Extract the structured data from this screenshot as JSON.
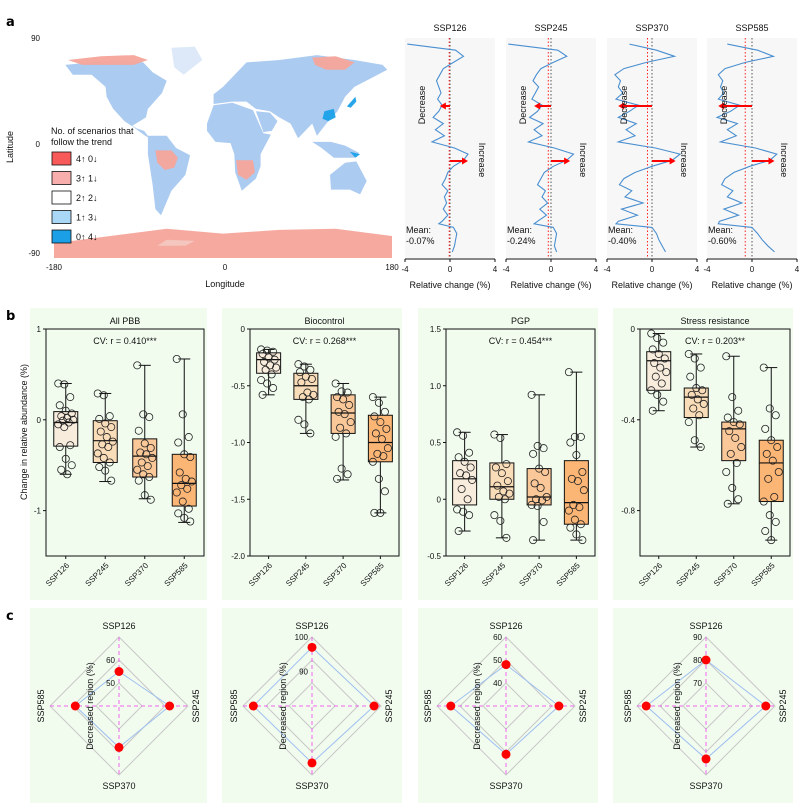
{
  "figure": {
    "panel_letters": [
      "a",
      "b",
      "c"
    ]
  },
  "chart_data": [
    {
      "id": "map",
      "type": "heatmap",
      "title": "",
      "xlabel": "Longitude",
      "ylabel": "Latitude",
      "xticks": [
        "-180",
        "0",
        "180"
      ],
      "yticks": [
        "90",
        "0",
        "-90"
      ],
      "xlim": [
        -180,
        180
      ],
      "ylim": [
        -90,
        90
      ],
      "legend": {
        "title_line1": "No. of scenarios that",
        "title_line2": "follow the trend",
        "placement": "left",
        "items": [
          {
            "label": "4↑ 0↓",
            "color": "#f85a5a"
          },
          {
            "label": "3↑ 1↓",
            "color": "#f9aeae"
          },
          {
            "label": "2↑ 2↓",
            "color": "#ffffff"
          },
          {
            "label": "1↑ 3↓",
            "color": "#a8d8f5"
          },
          {
            "label": "0↑ 4↓",
            "color": "#1ba0e8"
          }
        ]
      }
    },
    {
      "id": "latitude-profiles",
      "type": "line",
      "xlabel": "Relative change (%)",
      "xticks": [
        "-4",
        "0",
        "4"
      ],
      "xlim": [
        -4,
        4
      ],
      "ylim": [
        -90,
        90
      ],
      "annotations": {
        "decrease": "Decrease",
        "increase": "Increase",
        "mean_prefix": "Mean:"
      },
      "series": [
        {
          "name": "SSP126",
          "mean": "-0.07%",
          "mean_value": -0.07,
          "decrease_arrow_to": -0.9,
          "increase_arrow_to": 1.6,
          "profile_lat": [
            85,
            80,
            75,
            70,
            65,
            60,
            55,
            50,
            45,
            40,
            35,
            30,
            25,
            20,
            15,
            10,
            5,
            0,
            -5,
            -10,
            -15,
            -20,
            -25,
            -30,
            -35,
            -40,
            -45,
            -50,
            -55,
            -60,
            -62,
            -65,
            -70,
            -75,
            -80,
            -85
          ],
          "profile_x": [
            -3.8,
            0.5,
            1.2,
            0.3,
            -0.6,
            -0.9,
            -1.2,
            -1.0,
            -0.8,
            -1.1,
            -0.7,
            -1.0,
            -1.5,
            -0.6,
            -1.3,
            -0.5,
            -1.6,
            0.4,
            1.6,
            1.2,
            0.3,
            -0.2,
            -0.4,
            -0.7,
            -0.2,
            -0.5,
            -0.3,
            -0.6,
            -0.2,
            -0.7,
            -1.0,
            0.3,
            0.6,
            0.5,
            0.4,
            0.2
          ]
        },
        {
          "name": "SSP245",
          "mean": "-0.24%",
          "mean_value": -0.24,
          "decrease_arrow_to": -1.5,
          "increase_arrow_to": 1.7,
          "profile_lat": [
            85,
            80,
            75,
            70,
            65,
            60,
            55,
            50,
            45,
            40,
            35,
            30,
            25,
            20,
            15,
            10,
            5,
            0,
            -5,
            -10,
            -15,
            -20,
            -25,
            -30,
            -35,
            -40,
            -45,
            -50,
            -55,
            -60,
            -62,
            -65,
            -70,
            -75,
            -80,
            -85
          ],
          "profile_x": [
            -3.8,
            0.6,
            1.4,
            0.2,
            -0.9,
            -1.3,
            -1.6,
            -1.1,
            -1.4,
            -1.7,
            -0.8,
            -1.2,
            -1.9,
            -0.7,
            -1.5,
            -0.8,
            -2.0,
            0.3,
            2.0,
            1.4,
            0.2,
            -0.6,
            -0.9,
            -1.2,
            -0.5,
            -0.8,
            -0.3,
            -1.0,
            -0.4,
            -1.2,
            -1.5,
            0.2,
            0.5,
            0.4,
            0.3,
            0.5
          ]
        },
        {
          "name": "SSP370",
          "mean": "-0.40%",
          "mean_value": -0.4,
          "decrease_arrow_to": -3.0,
          "increase_arrow_to": 2.1,
          "profile_lat": [
            85,
            80,
            75,
            70,
            65,
            60,
            55,
            50,
            45,
            40,
            35,
            30,
            25,
            20,
            15,
            10,
            5,
            0,
            -5,
            -10,
            -15,
            -20,
            -25,
            -30,
            -35,
            -40,
            -45,
            -50,
            -55,
            -60,
            -62,
            -65,
            -70,
            -75,
            -80,
            -85
          ],
          "profile_x": [
            -2.0,
            0.4,
            2.0,
            -0.5,
            -2.5,
            -3.3,
            -2.8,
            -3.0,
            -2.6,
            -3.2,
            -1.2,
            -2.0,
            -3.0,
            -1.4,
            -2.3,
            -1.5,
            -3.0,
            0.3,
            2.5,
            1.8,
            0.0,
            -1.5,
            -2.5,
            -2.9,
            -1.8,
            -2.4,
            -0.8,
            -2.7,
            -1.3,
            -3.0,
            -3.2,
            0.0,
            0.4,
            0.6,
            0.9,
            1.2
          ]
        },
        {
          "name": "SSP585",
          "mean": "-0.60%",
          "mean_value": -0.6,
          "decrease_arrow_to": -3.0,
          "increase_arrow_to": 2.0,
          "profile_lat": [
            85,
            80,
            75,
            70,
            65,
            60,
            55,
            50,
            45,
            40,
            35,
            30,
            25,
            20,
            15,
            10,
            5,
            0,
            -5,
            -10,
            -15,
            -20,
            -25,
            -30,
            -35,
            -40,
            -45,
            -50,
            -55,
            -60,
            -62,
            -65,
            -70,
            -75,
            -80,
            -85
          ],
          "profile_x": [
            -2.2,
            0.5,
            1.9,
            -0.6,
            -2.4,
            -3.0,
            -2.6,
            -2.8,
            -2.5,
            -3.0,
            -1.1,
            -1.9,
            -3.1,
            -1.3,
            -2.2,
            -1.4,
            -2.8,
            0.3,
            2.2,
            1.6,
            -0.2,
            -1.6,
            -2.4,
            -2.7,
            -1.7,
            -2.2,
            -0.9,
            -2.5,
            -1.2,
            -2.9,
            -3.0,
            0.0,
            0.5,
            0.9,
            1.4,
            2.0
          ]
        }
      ]
    },
    {
      "id": "boxplots",
      "type": "bar",
      "subtype": "boxplot",
      "ylabel": "Change in relative abundance (%)",
      "categories": [
        "SSP126",
        "SSP245",
        "SSP370",
        "SSP585"
      ],
      "box_colors": [
        "#f8ecdc",
        "#f9dcb8",
        "#fac898",
        "#fbb575"
      ],
      "panels": [
        {
          "title": "All PBB",
          "annotation": "CV: r = 0.410***",
          "ylim": [
            -1.5,
            1
          ],
          "yticks": [
            1,
            0,
            -1
          ],
          "ytick_labels": [
            "1",
            "0",
            "-1"
          ],
          "boxes": [
            {
              "whislo": -0.6,
              "q1": -0.29,
              "med": -0.03,
              "q3": 0.09,
              "whishi": 0.4,
              "points": [
                0.4,
                0.39,
                0.25,
                0.16,
                0.1,
                0.07,
                0.04,
                0.02,
                0.0,
                -0.01,
                -0.03,
                -0.05,
                -0.08,
                -0.28,
                -0.3,
                -0.43,
                -0.5,
                -0.55,
                -0.6
              ]
            },
            {
              "whislo": -0.68,
              "q1": -0.47,
              "med": -0.23,
              "q3": -0.01,
              "whishi": 0.29,
              "points": [
                0.29,
                0.27,
                0.04,
                0.01,
                -0.04,
                -0.08,
                -0.13,
                -0.19,
                -0.24,
                -0.27,
                -0.3,
                -0.37,
                -0.42,
                -0.47,
                -0.52,
                -0.56,
                -0.67
              ]
            },
            {
              "whislo": -0.87,
              "q1": -0.63,
              "med": -0.4,
              "q3": -0.21,
              "whishi": 0.6,
              "points": [
                0.6,
                0.06,
                0.03,
                -0.12,
                -0.26,
                -0.31,
                -0.36,
                -0.38,
                -0.42,
                -0.47,
                -0.51,
                -0.55,
                -0.6,
                -0.63,
                -0.67,
                -0.83,
                -0.88
              ]
            },
            {
              "whislo": -1.13,
              "q1": -0.95,
              "med": -0.7,
              "q3": -0.38,
              "whishi": 0.67,
              "points": [
                0.67,
                0.06,
                -0.19,
                -0.25,
                -0.38,
                -0.41,
                -0.58,
                -0.65,
                -0.68,
                -0.72,
                -0.76,
                -0.8,
                -0.9,
                -0.98,
                -1.03,
                -1.08,
                -1.12
              ]
            }
          ]
        },
        {
          "title": "Biocontrol",
          "annotation": "CV: r = 0.268***",
          "ylim": [
            -2.0,
            0
          ],
          "yticks": [
            0,
            -0.5,
            -1.0,
            -1.5,
            -2.0
          ],
          "ytick_labels": [
            "0",
            "-0.5",
            "-1.0",
            "-1.5",
            "-2.0"
          ],
          "boxes": [
            {
              "whislo": -0.58,
              "q1": -0.39,
              "med": -0.27,
              "q3": -0.21,
              "whishi": -0.18,
              "points": [
                -0.18,
                -0.19,
                -0.2,
                -0.22,
                -0.25,
                -0.27,
                -0.29,
                -0.32,
                -0.34,
                -0.36,
                -0.4,
                -0.45,
                -0.48,
                -0.52,
                -0.58
              ]
            },
            {
              "whislo": -0.92,
              "q1": -0.62,
              "med": -0.5,
              "q3": -0.39,
              "whishi": -0.31,
              "points": [
                -0.31,
                -0.33,
                -0.36,
                -0.38,
                -0.42,
                -0.44,
                -0.47,
                -0.56,
                -0.58,
                -0.6,
                -0.62,
                -0.8,
                -0.84,
                -0.92
              ]
            },
            {
              "whislo": -1.33,
              "q1": -0.92,
              "med": -0.74,
              "q3": -0.58,
              "whishi": -0.48,
              "points": [
                -0.48,
                -0.55,
                -0.56,
                -0.6,
                -0.62,
                -0.67,
                -0.73,
                -0.75,
                -0.82,
                -0.87,
                -0.92,
                -0.95,
                -1.23,
                -1.28,
                -1.32
              ]
            },
            {
              "whislo": -1.62,
              "q1": -1.17,
              "med": -1.0,
              "q3": -0.76,
              "whishi": -0.6,
              "points": [
                -0.6,
                -0.65,
                -0.73,
                -0.77,
                -0.82,
                -0.88,
                -0.92,
                -0.97,
                -1.05,
                -1.1,
                -1.12,
                -1.17,
                -1.32,
                -1.43,
                -1.62,
                -1.62
              ]
            }
          ]
        },
        {
          "title": "PGP",
          "annotation": "CV: r = 0.454***",
          "ylim": [
            -0.5,
            1.5
          ],
          "yticks": [
            1.5,
            1.0,
            0.5,
            0,
            -0.5
          ],
          "ytick_labels": [
            "1.5",
            "1.0",
            "0.5",
            "0",
            "-0.5"
          ],
          "boxes": [
            {
              "whislo": -0.28,
              "q1": -0.05,
              "med": 0.18,
              "q3": 0.34,
              "whishi": 0.59,
              "points": [
                0.59,
                0.56,
                0.41,
                0.37,
                0.33,
                0.28,
                0.23,
                0.21,
                0.17,
                0.09,
                0.0,
                -0.09,
                -0.11,
                -0.14,
                -0.28
              ]
            },
            {
              "whislo": -0.34,
              "q1": 0.0,
              "med": 0.11,
              "q3": 0.32,
              "whishi": 0.57,
              "points": [
                0.57,
                0.54,
                0.31,
                0.28,
                0.23,
                0.16,
                0.12,
                0.07,
                0.05,
                0.02,
                0.0,
                -0.14,
                -0.19,
                -0.34
              ]
            },
            {
              "whislo": -0.36,
              "q1": -0.05,
              "med": 0.02,
              "q3": 0.27,
              "whishi": 0.92,
              "points": [
                0.92,
                0.47,
                0.45,
                0.4,
                0.27,
                0.24,
                0.14,
                0.1,
                0.02,
                0.0,
                -0.01,
                -0.05,
                -0.06,
                -0.2,
                -0.36
              ]
            },
            {
              "whislo": -0.36,
              "q1": -0.22,
              "med": -0.03,
              "q3": 0.34,
              "whishi": 1.12,
              "points": [
                1.12,
                0.55,
                0.55,
                0.5,
                0.39,
                0.24,
                0.18,
                0.16,
                0.08,
                -0.05,
                -0.07,
                -0.1,
                -0.18,
                -0.22,
                -0.25,
                -0.31,
                -0.36
              ]
            }
          ]
        },
        {
          "title": "Stress resistance",
          "annotation": "CV: r = 0.203**",
          "ylim": [
            -1.0,
            0
          ],
          "yticks": [
            0,
            -0.4,
            -0.8
          ],
          "ytick_labels": [
            "0",
            "-0.4",
            "-0.8"
          ],
          "boxes": [
            {
              "whislo": -0.36,
              "q1": -0.27,
              "med": -0.14,
              "q3": -0.1,
              "whishi": -0.02,
              "points": [
                -0.02,
                -0.04,
                -0.06,
                -0.09,
                -0.11,
                -0.13,
                -0.15,
                -0.17,
                -0.19,
                -0.21,
                -0.24,
                -0.27,
                -0.29,
                -0.32,
                -0.36
              ]
            },
            {
              "whislo": -0.52,
              "q1": -0.39,
              "med": -0.3,
              "q3": -0.26,
              "whishi": -0.11,
              "points": [
                -0.11,
                -0.13,
                -0.17,
                -0.21,
                -0.26,
                -0.27,
                -0.29,
                -0.31,
                -0.33,
                -0.35,
                -0.38,
                -0.41,
                -0.49,
                -0.52
              ]
            },
            {
              "whislo": -0.77,
              "q1": -0.58,
              "med": -0.44,
              "q3": -0.41,
              "whishi": -0.12,
              "points": [
                -0.12,
                -0.3,
                -0.36,
                -0.39,
                -0.41,
                -0.42,
                -0.45,
                -0.48,
                -0.52,
                -0.55,
                -0.59,
                -0.63,
                -0.7,
                -0.75,
                -0.77
              ]
            },
            {
              "whislo": -0.93,
              "q1": -0.76,
              "med": -0.59,
              "q3": -0.49,
              "whishi": -0.17,
              "points": [
                -0.17,
                -0.35,
                -0.38,
                -0.44,
                -0.49,
                -0.52,
                -0.55,
                -0.58,
                -0.63,
                -0.66,
                -0.74,
                -0.76,
                -0.82,
                -0.85,
                -0.89,
                -0.93
              ]
            }
          ]
        }
      ]
    },
    {
      "id": "radars",
      "type": "scatter",
      "subtype": "radar",
      "ylabel": "Decreased region (%)",
      "axes": [
        "SSP126",
        "SSP245",
        "SSP370",
        "SSP585"
      ],
      "panels": [
        {
          "rlim": [
            40,
            70
          ],
          "rticks": [
            50,
            60
          ],
          "values": [
            55,
            62,
            58,
            59
          ]
        },
        {
          "rlim": [
            80,
            100
          ],
          "rticks": [
            90,
            100
          ],
          "values": [
            97,
            98,
            96.5,
            97
          ]
        },
        {
          "rlim": [
            30,
            60
          ],
          "rticks": [
            40,
            50,
            60
          ],
          "values": [
            48,
            53,
            51,
            54
          ]
        },
        {
          "rlim": [
            60,
            90
          ],
          "rticks": [
            70,
            80,
            90
          ],
          "values": [
            80,
            86,
            83,
            86
          ]
        }
      ]
    }
  ]
}
